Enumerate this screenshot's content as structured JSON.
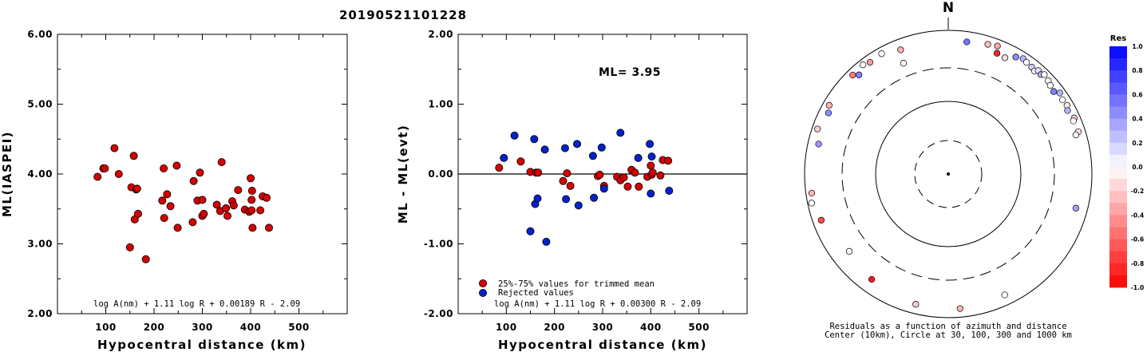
{
  "page_title": "20190521101228",
  "chart_data": [
    {
      "type": "scatter",
      "title": "",
      "xlabel": "Hypocentral distance (km)",
      "ylabel": "ML(IASPEI)",
      "xlim": [
        0,
        600
      ],
      "ylim": [
        2.0,
        6.0
      ],
      "x_ticks": [
        "100",
        "200",
        "300",
        "400",
        "500"
      ],
      "y_ticks": [
        "2.00",
        "3.00",
        "4.00",
        "5.00",
        "6.00"
      ],
      "formula": "log A(nm) + 1.11 log R + 0.00189 R - 2.09",
      "point_color": "#d40000",
      "points": [
        [
          83,
          3.96
        ],
        [
          95,
          4.08
        ],
        [
          98,
          4.08
        ],
        [
          118,
          4.37
        ],
        [
          127,
          4.0
        ],
        [
          150,
          2.95
        ],
        [
          153,
          3.81
        ],
        [
          158,
          4.26
        ],
        [
          160,
          3.35
        ],
        [
          163,
          3.78
        ],
        [
          165,
          3.79
        ],
        [
          167,
          3.43
        ],
        [
          183,
          2.78
        ],
        [
          217,
          3.62
        ],
        [
          220,
          4.08
        ],
        [
          221,
          3.37
        ],
        [
          227,
          3.71
        ],
        [
          234,
          3.54
        ],
        [
          247,
          4.12
        ],
        [
          249,
          3.23
        ],
        [
          280,
          3.31
        ],
        [
          282,
          3.9
        ],
        [
          290,
          3.62
        ],
        [
          295,
          4.02
        ],
        [
          300,
          3.63
        ],
        [
          300,
          3.4
        ],
        [
          303,
          3.43
        ],
        [
          330,
          3.56
        ],
        [
          337,
          3.47
        ],
        [
          340,
          4.17
        ],
        [
          349,
          3.51
        ],
        [
          352,
          3.4
        ],
        [
          362,
          3.61
        ],
        [
          365,
          3.55
        ],
        [
          374,
          3.77
        ],
        [
          388,
          3.49
        ],
        [
          397,
          3.46
        ],
        [
          400,
          3.94
        ],
        [
          402,
          3.48
        ],
        [
          402,
          3.63
        ],
        [
          403,
          3.76
        ],
        [
          404,
          3.23
        ],
        [
          420,
          3.48
        ],
        [
          425,
          3.68
        ],
        [
          433,
          3.66
        ],
        [
          438,
          3.23
        ]
      ]
    },
    {
      "type": "scatter",
      "title": "",
      "xlabel": "Hypocentral distance (km)",
      "ylabel": "ML - ML(evt)",
      "xlim": [
        0,
        600
      ],
      "ylim": [
        -2.0,
        2.0
      ],
      "x_ticks": [
        "100",
        "200",
        "300",
        "400",
        "500"
      ],
      "y_ticks": [
        "-2.00",
        "-1.00",
        "0.00",
        "1.00",
        "2.00"
      ],
      "annotation": "ML= 3.95",
      "formula": "log A(nm) + 1.11 log R + 0.00300 R - 2.09",
      "legend": [
        {
          "label": "25%-75% values for trimmed mean",
          "color": "#d40000"
        },
        {
          "label": "Rejected values",
          "color": "#0022cc"
        }
      ],
      "series": [
        {
          "name": "25%-75% values for trimmed mean",
          "color": "#d40000",
          "points": [
            [
              85,
              0.09
            ],
            [
              130,
              0.18
            ],
            [
              150,
              0.03
            ],
            [
              162,
              0.02
            ],
            [
              166,
              0.02
            ],
            [
              218,
              -0.1
            ],
            [
              226,
              0.01
            ],
            [
              233,
              -0.17
            ],
            [
              290,
              -0.03
            ],
            [
              294,
              -0.01
            ],
            [
              303,
              -0.17
            ],
            [
              330,
              -0.04
            ],
            [
              337,
              -0.09
            ],
            [
              344,
              -0.05
            ],
            [
              352,
              -0.18
            ],
            [
              360,
              0.06
            ],
            [
              367,
              0.02
            ],
            [
              375,
              -0.18
            ],
            [
              393,
              -0.04
            ],
            [
              400,
              0.12
            ],
            [
              402,
              -0.01
            ],
            [
              404,
              0.02
            ],
            [
              420,
              -0.02
            ],
            [
              425,
              0.2
            ],
            [
              436,
              0.19
            ]
          ]
        },
        {
          "name": "Rejected values",
          "color": "#0022cc",
          "points": [
            [
              95,
              0.23
            ],
            [
              117,
              0.55
            ],
            [
              150,
              -0.82
            ],
            [
              158,
              0.5
            ],
            [
              160,
              -0.43
            ],
            [
              165,
              -0.35
            ],
            [
              180,
              0.35
            ],
            [
              183,
              -0.97
            ],
            [
              222,
              0.37
            ],
            [
              224,
              -0.36
            ],
            [
              247,
              0.43
            ],
            [
              250,
              -0.45
            ],
            [
              280,
              0.26
            ],
            [
              282,
              -0.34
            ],
            [
              298,
              0.38
            ],
            [
              303,
              -0.21
            ],
            [
              337,
              0.59
            ],
            [
              374,
              0.23
            ],
            [
              398,
              0.43
            ],
            [
              402,
              0.25
            ],
            [
              400,
              -0.28
            ],
            [
              438,
              -0.24
            ]
          ]
        }
      ]
    },
    {
      "type": "scatter",
      "title": "N",
      "caption_line1": "Residuals as a function of azimuth and distance",
      "caption_line2": "Center (10km), Circle at 30, 100, 300 and 1000 km",
      "colorbar_title": "Res",
      "colorbar_ticks": [
        "1.0",
        "0.8",
        "0.6",
        "0.4",
        "0.2",
        "0.0",
        "-0.2",
        "-0.4",
        "-0.6",
        "-0.8",
        "-1.0"
      ],
      "stations": [
        {
          "az": 8,
          "d": 720,
          "res": 0.55
        },
        {
          "az": 17,
          "d": 770,
          "res": -0.25
        },
        {
          "az": 22,
          "d": 650,
          "res": -0.85
        },
        {
          "az": 21,
          "d": 810,
          "res": -0.35
        },
        {
          "az": 26,
          "d": 630,
          "res": -0.15
        },
        {
          "az": 30,
          "d": 760,
          "res": 0.45
        },
        {
          "az": 33,
          "d": 820,
          "res": 0.3
        },
        {
          "az": 35,
          "d": 790,
          "res": 0.0
        },
        {
          "az": 38,
          "d": 770,
          "res": 0.2
        },
        {
          "az": 40,
          "d": 740,
          "res": 0.0
        },
        {
          "az": 41,
          "d": 810,
          "res": 0.1
        },
        {
          "az": 43,
          "d": 780,
          "res": 0.3
        },
        {
          "az": 44,
          "d": 840,
          "res": 0.0
        },
        {
          "az": 47,
          "d": 800,
          "res": 0.0
        },
        {
          "az": 49,
          "d": 760,
          "res": 0.0
        },
        {
          "az": 52,
          "d": 730,
          "res": 0.5
        },
        {
          "az": 54,
          "d": 830,
          "res": 0.3
        },
        {
          "az": 57,
          "d": 790,
          "res": 0.0
        },
        {
          "az": 60,
          "d": 810,
          "res": -0.1
        },
        {
          "az": 62,
          "d": 760,
          "res": 0.3
        },
        {
          "az": 66,
          "d": 830,
          "res": -0.2
        },
        {
          "az": 67,
          "d": 780,
          "res": 0.0
        },
        {
          "az": 72,
          "d": 800,
          "res": -0.1
        },
        {
          "az": 73,
          "d": 720,
          "res": 0.0
        },
        {
          "az": 105,
          "d": 690,
          "res": 0.35
        },
        {
          "az": 155,
          "d": 720,
          "res": 0.0
        },
        {
          "az": 175,
          "d": 760,
          "res": -0.3
        },
        {
          "az": 194,
          "d": 740,
          "res": -0.2
        },
        {
          "az": 216,
          "d": 650,
          "res": -0.9
        },
        {
          "az": 232,
          "d": 560,
          "res": 0.0
        },
        {
          "az": 250,
          "d": 760,
          "res": -0.7
        },
        {
          "az": 258,
          "d": 880,
          "res": 0.0
        },
        {
          "az": 262,
          "d": 830,
          "res": -0.3
        },
        {
          "az": 283,
          "d": 710,
          "res": 0.4
        },
        {
          "az": 289,
          "d": 840,
          "res": -0.2
        },
        {
          "az": 297,
          "d": 745,
          "res": 0.45
        },
        {
          "az": 300,
          "d": 820,
          "res": -0.3
        },
        {
          "az": 316,
          "d": 820,
          "res": -0.5
        },
        {
          "az": 318,
          "d": 720,
          "res": 0.5
        },
        {
          "az": 322,
          "d": 850,
          "res": 0.0
        },
        {
          "az": 325,
          "d": 790,
          "res": -0.4
        },
        {
          "az": 331,
          "d": 820,
          "res": 0.0
        },
        {
          "az": 338,
          "d": 460,
          "res": 0.0
        },
        {
          "az": 339,
          "d": 710,
          "res": -0.3
        }
      ]
    }
  ]
}
